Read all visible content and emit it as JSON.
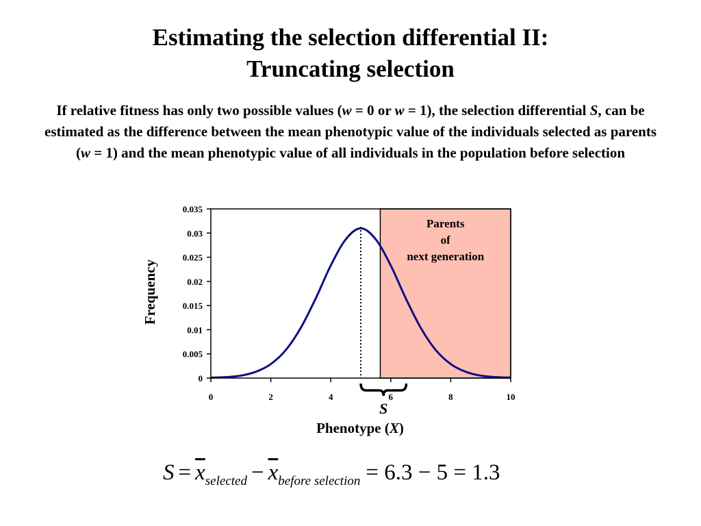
{
  "slide": {
    "title_line1": "Estimating the selection differential II:",
    "title_line2": "Truncating selection",
    "desc_parts": [
      "If relative fitness has only two possible values (",
      "w",
      " = 0 or ",
      "w",
      " = 1), the selection differential ",
      "S",
      ", can be estimated as the difference between the mean phenotypic value of the individuals selected as parents (",
      "w",
      " = 1) and the mean phenotypic value of all individuals in the population before selection"
    ]
  },
  "chart_data": {
    "type": "line",
    "ylabel": "Frequency",
    "xlabel": "Phenotype (X)",
    "xlabel_main": "Phenotype (",
    "xlabel_var": "X",
    "xlabel_close": ")",
    "xlim": [
      0,
      10
    ],
    "ylim": [
      0,
      0.035
    ],
    "x_ticks": [
      "0",
      "2",
      "4",
      "6",
      "8",
      "10"
    ],
    "y_ticks": [
      "0",
      "0.005",
      "0.01",
      "0.015",
      "0.02",
      "0.025",
      "0.03",
      "0.035"
    ],
    "x_tick_values": [
      0,
      2,
      4,
      6,
      8,
      10
    ],
    "y_tick_values": [
      0,
      0.005,
      0.01,
      0.015,
      0.02,
      0.025,
      0.03,
      0.035
    ],
    "series": [
      {
        "x": [
          0,
          0.5,
          1,
          1.5,
          2,
          2.5,
          3,
          3.5,
          4,
          4.5,
          5,
          5.5,
          6,
          6.5,
          7,
          7.5,
          8,
          8.5,
          9,
          9.5,
          10
        ],
        "values": [
          0.0001,
          0.0002,
          0.0005,
          0.0013,
          0.0029,
          0.0058,
          0.0104,
          0.0165,
          0.0233,
          0.0287,
          0.031,
          0.0287,
          0.0233,
          0.0165,
          0.0104,
          0.0058,
          0.0029,
          0.0013,
          0.0005,
          0.0002,
          0.0001
        ],
        "color": "#101080"
      }
    ],
    "mean_line_x": 5,
    "selection_threshold_x": 5.65,
    "shaded_region_color": "#ffc0b4",
    "region_label_lines": [
      "Parents",
      "of",
      "next generation"
    ],
    "brace_label": "S",
    "grid": false
  },
  "formula": {
    "S": "S",
    "eq": "=",
    "x": "x",
    "sub_selected": "selected",
    "minus": "−",
    "sub_before": "before selection",
    "result": "= 6.3 − 5 = 1.3"
  }
}
